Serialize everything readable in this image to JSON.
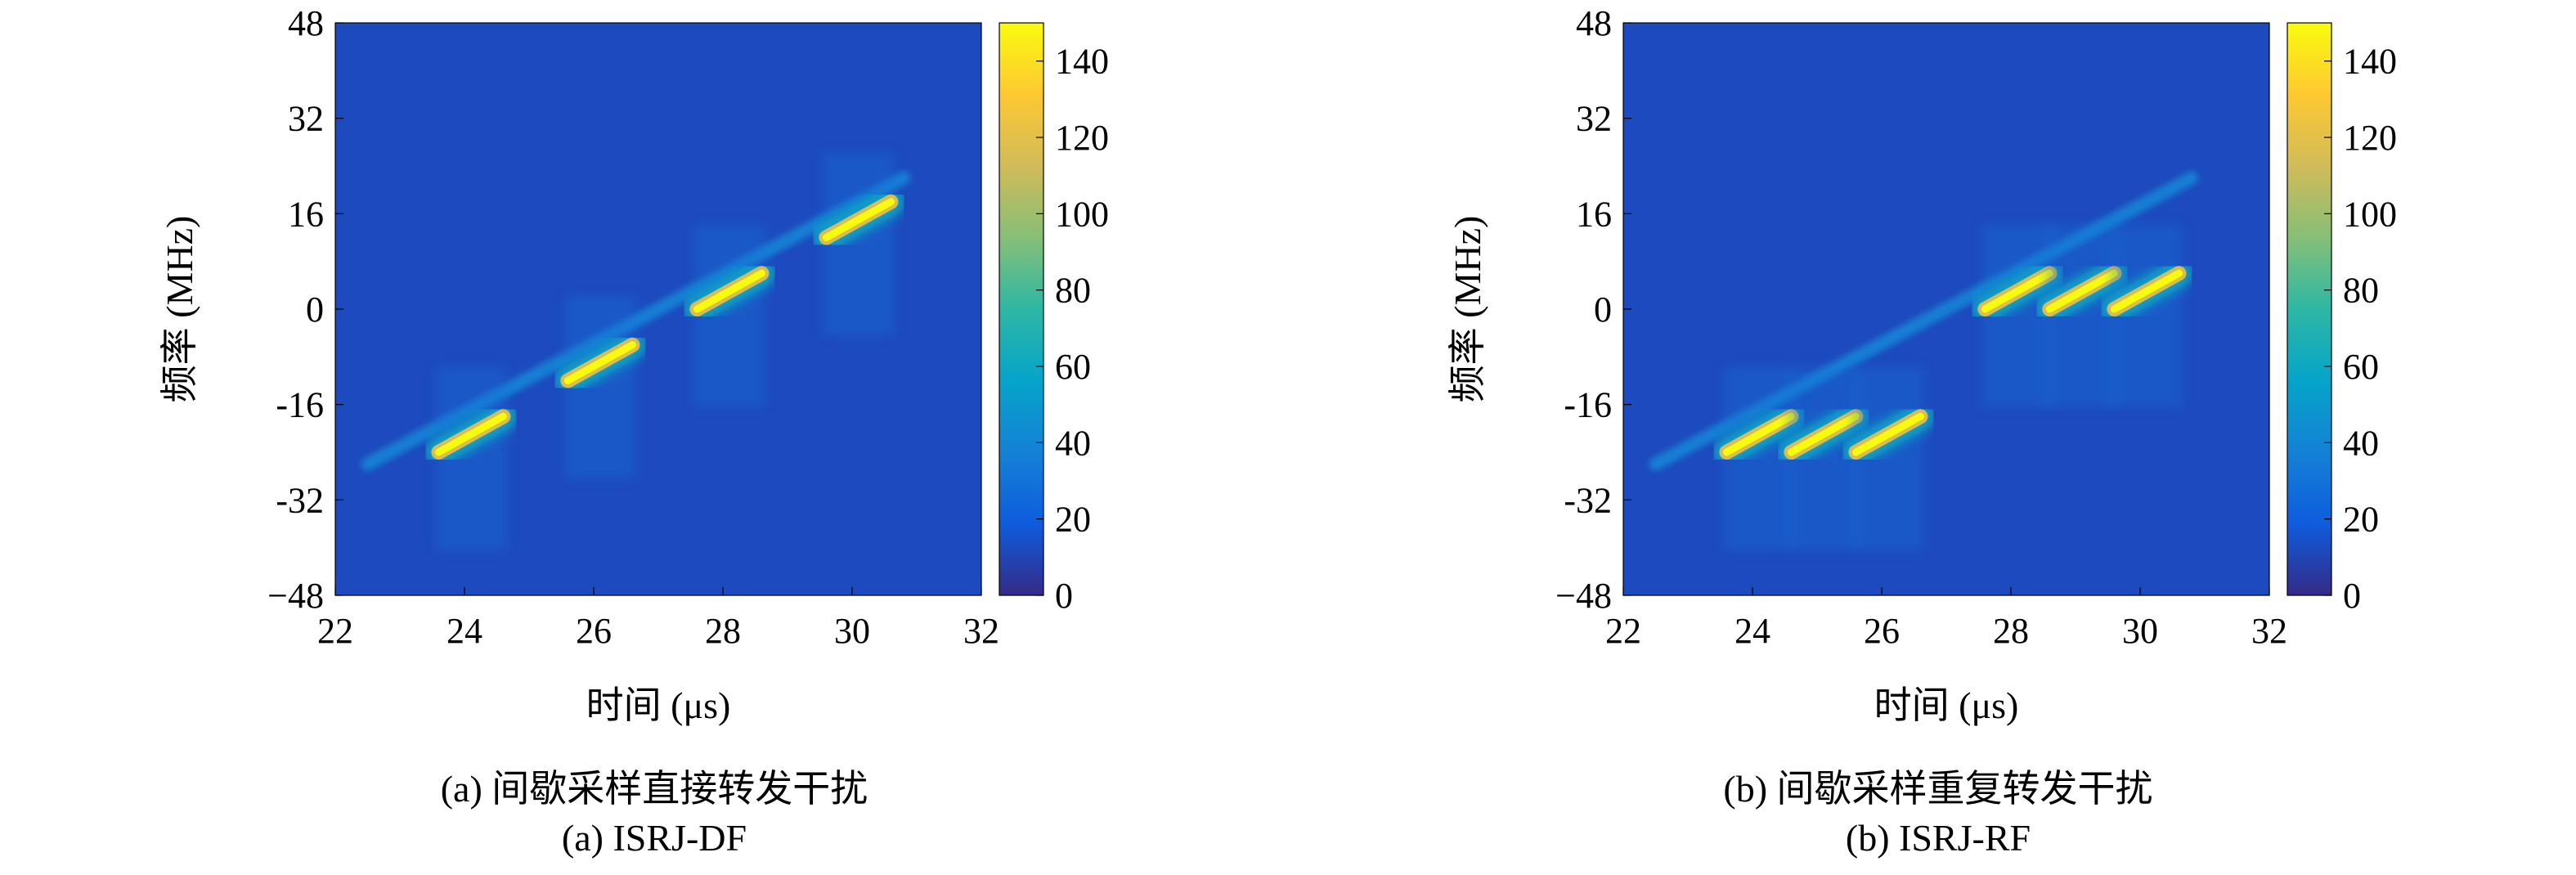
{
  "chart_data": [
    {
      "type": "heatmap",
      "xlabel": "时间 (μs)",
      "ylabel": "频率 (MHz)",
      "xlim": [
        22,
        32
      ],
      "ylim": [
        -48,
        48
      ],
      "xticks": [
        "22",
        "24",
        "26",
        "28",
        "30",
        "32"
      ],
      "yticks": [
        "48",
        "32",
        "16",
        "0",
        "-16",
        "-32",
        "−48"
      ],
      "colorbar": {
        "range": [
          0,
          150
        ],
        "ticks": [
          "0",
          "20",
          "40",
          "60",
          "80",
          "100",
          "120",
          "140"
        ],
        "colormap": "parula"
      },
      "caption_cn": "(a) 间歇采样直接转发干扰",
      "caption_en": "(a) ISRJ-DF",
      "features": {
        "background_level": 12,
        "reference_chirp": {
          "t_start": 22.5,
          "t_end": 30.8,
          "f_start": -26,
          "f_end": 22,
          "level": 38
        },
        "jamming_segments": [
          {
            "t_start": 23.6,
            "t_end": 24.6,
            "f_start": -24,
            "f_end": -18,
            "level": 150
          },
          {
            "t_start": 25.6,
            "t_end": 26.6,
            "f_start": -12,
            "f_end": -6,
            "level": 150
          },
          {
            "t_start": 27.6,
            "t_end": 28.6,
            "f_start": 0,
            "f_end": 6,
            "level": 150
          },
          {
            "t_start": 29.6,
            "t_end": 30.6,
            "f_start": 12,
            "f_end": 18,
            "level": 150
          }
        ]
      }
    },
    {
      "type": "heatmap",
      "xlabel": "时间 (μs)",
      "ylabel": "频率 (MHz)",
      "xlim": [
        22,
        32
      ],
      "ylim": [
        -48,
        48
      ],
      "xticks": [
        "22",
        "24",
        "26",
        "28",
        "30",
        "32"
      ],
      "yticks": [
        "48",
        "32",
        "16",
        "0",
        "-16",
        "-32",
        "−48"
      ],
      "colorbar": {
        "range": [
          0,
          150
        ],
        "ticks": [
          "0",
          "20",
          "40",
          "60",
          "80",
          "100",
          "120",
          "140"
        ],
        "colormap": "parula"
      },
      "caption_cn": "(b) 间歇采样重复转发干扰",
      "caption_en": "(b) ISRJ-RF",
      "features": {
        "background_level": 12,
        "reference_chirp": {
          "t_start": 22.5,
          "t_end": 30.8,
          "f_start": -26,
          "f_end": 22,
          "level": 38
        },
        "jamming_segments": [
          {
            "t_start": 23.6,
            "t_end": 24.6,
            "f_start": -24,
            "f_end": -18,
            "level": 150
          },
          {
            "t_start": 24.6,
            "t_end": 25.6,
            "f_start": -24,
            "f_end": -18,
            "level": 150
          },
          {
            "t_start": 25.6,
            "t_end": 26.6,
            "f_start": -24,
            "f_end": -18,
            "level": 150
          },
          {
            "t_start": 27.6,
            "t_end": 28.6,
            "f_start": 0,
            "f_end": 6,
            "level": 150
          },
          {
            "t_start": 28.6,
            "t_end": 29.6,
            "f_start": 0,
            "f_end": 6,
            "level": 150
          },
          {
            "t_start": 29.6,
            "t_end": 30.6,
            "f_start": 0,
            "f_end": 6,
            "level": 150
          }
        ]
      }
    }
  ]
}
